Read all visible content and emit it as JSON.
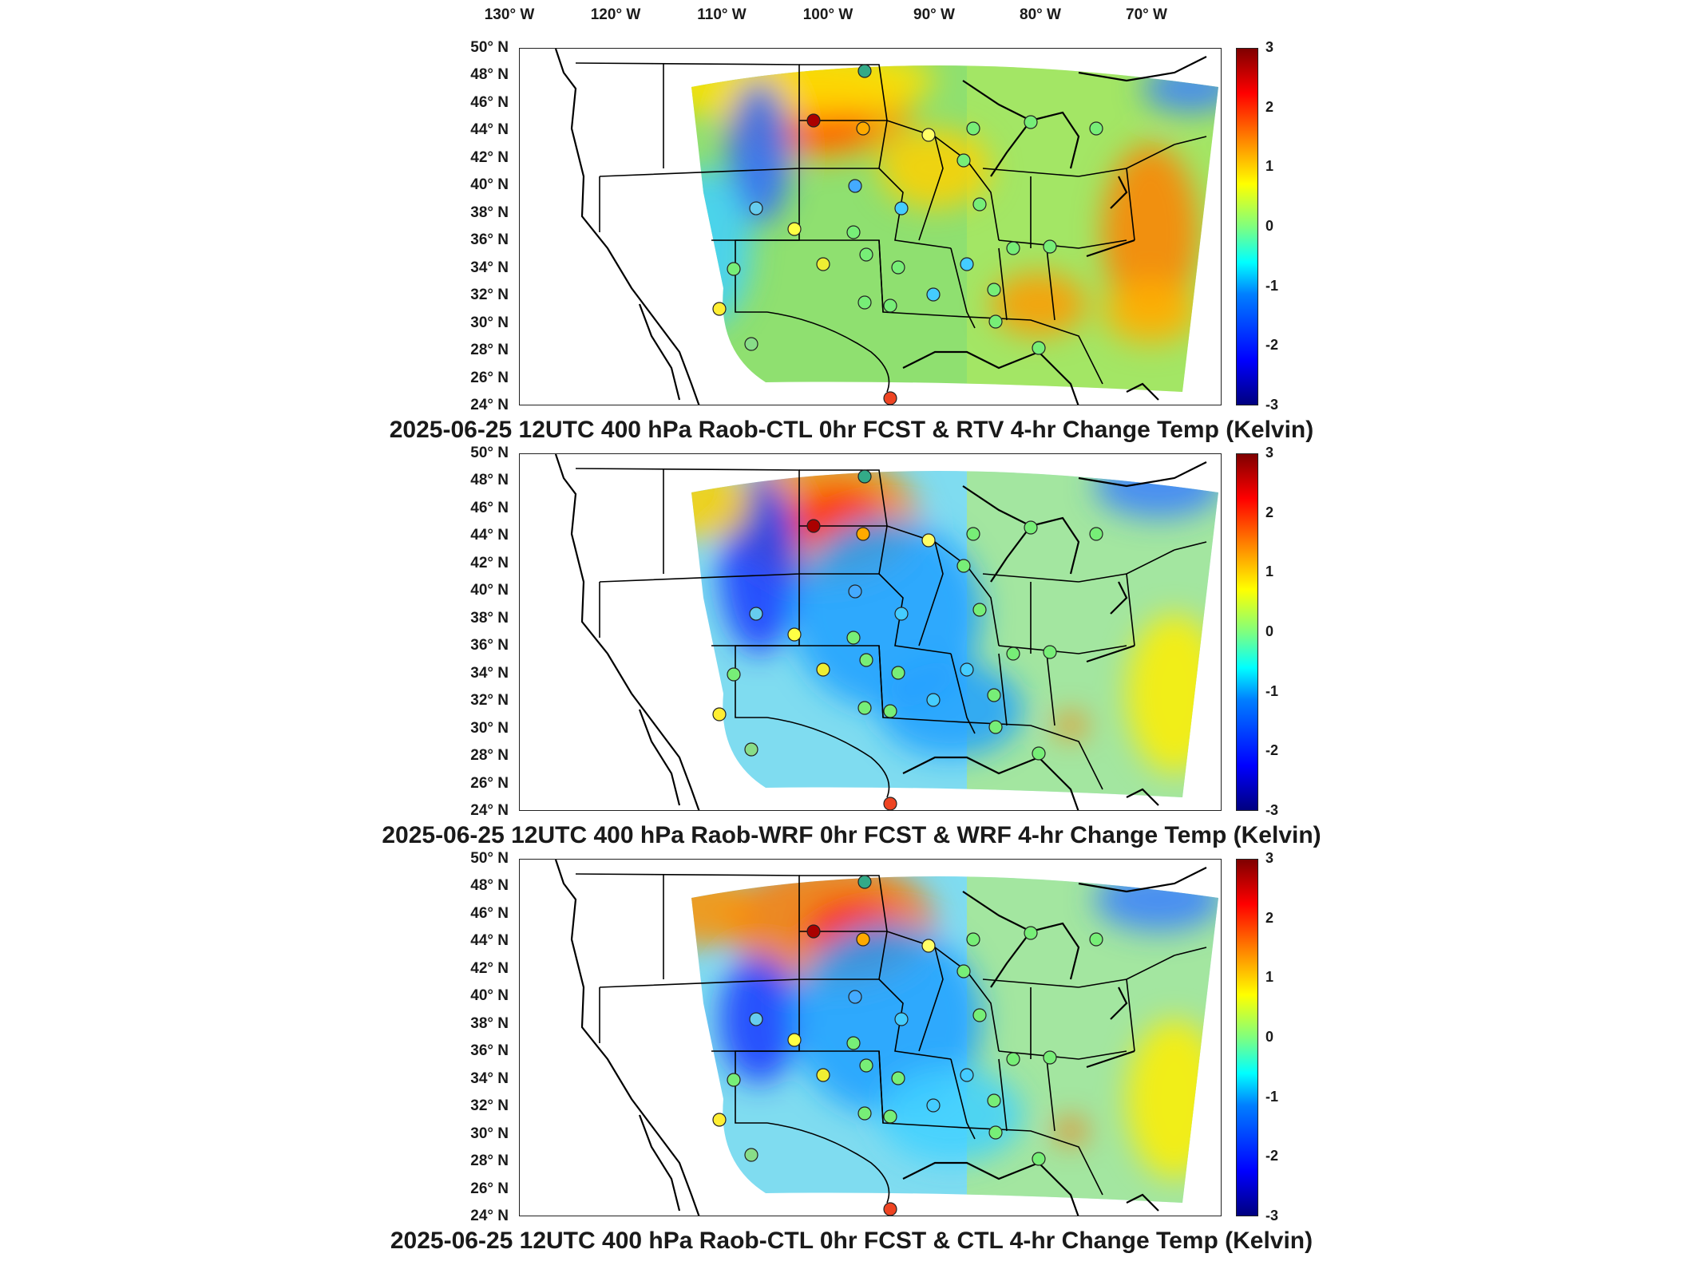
{
  "lon_labels": [
    "130° W",
    "120° W",
    "110° W",
    "100° W",
    "90° W",
    "80° W",
    "70° W"
  ],
  "lat_labels": [
    "50° N",
    "48° N",
    "46° N",
    "44° N",
    "42° N",
    "40° N",
    "38° N",
    "36° N",
    "34° N",
    "32° N",
    "30° N",
    "28° N",
    "26° N",
    "24° N"
  ],
  "colorbar_ticks": [
    "3",
    "2",
    "1",
    "0",
    "-1",
    "-2",
    "-3"
  ],
  "panels": [
    {
      "title": "2025-06-25 12UTC 400 hPa Raob-CTL 0hr FCST & RTV 4-hr Change Temp (Kelvin)",
      "variant": "rtv"
    },
    {
      "title": "2025-06-25 12UTC 400 hPa Raob-WRF 0hr FCST & WRF 4-hr Change Temp (Kelvin)",
      "variant": "wrf"
    },
    {
      "title": "2025-06-25 12UTC 400 hPa Raob-CTL 0hr FCST & CTL 4-hr Change Temp (Kelvin)",
      "variant": "ctl"
    }
  ],
  "colors": {
    "cold": "#0000ff",
    "neutral": "#7fff7f",
    "warm": "#ff0000",
    "hot": "#7f0000"
  }
}
